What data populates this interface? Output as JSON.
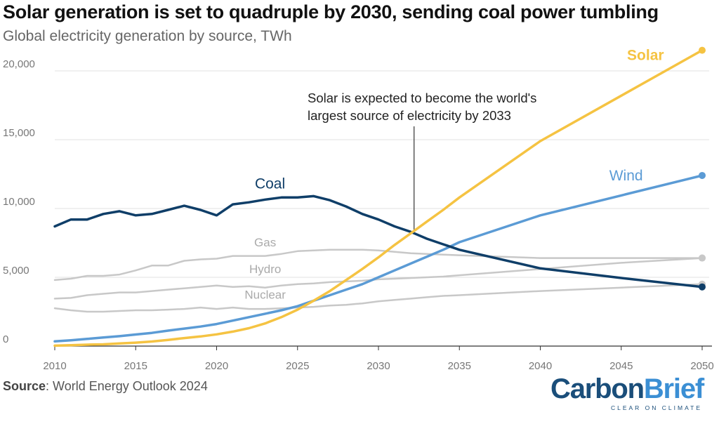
{
  "chart_data": {
    "type": "line",
    "title": "Solar generation is set to quadruple by 2030, sending coal power tumbling",
    "subtitle": "Global electricity generation by source, TWh",
    "xlim": [
      2010,
      2050
    ],
    "ylim": [
      0,
      22500
    ],
    "x_ticks": [
      "2010",
      "2015",
      "2020",
      "2025",
      "2030",
      "2035",
      "2040",
      "2045",
      "2050"
    ],
    "y_ticks": [
      {
        "value": 0,
        "label": "0"
      },
      {
        "value": 5000,
        "label": "5,000"
      },
      {
        "value": 10000,
        "label": "10,000"
      },
      {
        "value": 15000,
        "label": "15,000"
      },
      {
        "value": 20000,
        "label": "20,000"
      }
    ],
    "annotation": {
      "lines": [
        "Solar is expected to become the world's",
        "largest source of electricity by 2033"
      ],
      "x": 2032.2,
      "y": 8300
    },
    "series": [
      {
        "name": "Coal",
        "color": "#0f3e68",
        "width": 3.5,
        "label_x": 2023.3,
        "label_y": 11450,
        "label_anchor": "middle",
        "end_dot": true,
        "points": [
          [
            2010,
            8700
          ],
          [
            2011,
            9200
          ],
          [
            2012,
            9200
          ],
          [
            2013,
            9600
          ],
          [
            2014,
            9800
          ],
          [
            2015,
            9500
          ],
          [
            2016,
            9600
          ],
          [
            2017,
            9900
          ],
          [
            2018,
            10200
          ],
          [
            2019,
            9900
          ],
          [
            2020,
            9500
          ],
          [
            2021,
            10300
          ],
          [
            2022,
            10450
          ],
          [
            2023,
            10650
          ],
          [
            2024,
            10800
          ],
          [
            2025,
            10800
          ],
          [
            2026,
            10900
          ],
          [
            2027,
            10600
          ],
          [
            2028,
            10150
          ],
          [
            2029,
            9600
          ],
          [
            2030,
            9200
          ],
          [
            2031,
            8700
          ],
          [
            2032,
            8300
          ],
          [
            2033,
            7800
          ],
          [
            2034,
            7400
          ],
          [
            2035,
            7000
          ],
          [
            2040,
            5650
          ],
          [
            2045,
            4950
          ],
          [
            2050,
            4300
          ]
        ]
      },
      {
        "name": "Solar",
        "color": "#f5c342",
        "width": 3.5,
        "label_x": 2046.5,
        "label_y": 20800,
        "label_anchor": "middle",
        "end_dot": true,
        "points": [
          [
            2010,
            30
          ],
          [
            2011,
            60
          ],
          [
            2012,
            100
          ],
          [
            2013,
            130
          ],
          [
            2014,
            190
          ],
          [
            2015,
            250
          ],
          [
            2016,
            330
          ],
          [
            2017,
            450
          ],
          [
            2018,
            580
          ],
          [
            2019,
            700
          ],
          [
            2020,
            850
          ],
          [
            2021,
            1050
          ],
          [
            2022,
            1300
          ],
          [
            2023,
            1650
          ],
          [
            2024,
            2100
          ],
          [
            2025,
            2650
          ],
          [
            2026,
            3300
          ],
          [
            2027,
            4000
          ],
          [
            2028,
            4800
          ],
          [
            2029,
            5600
          ],
          [
            2030,
            6450
          ],
          [
            2031,
            7350
          ],
          [
            2032,
            8200
          ],
          [
            2033,
            9050
          ],
          [
            2034,
            9900
          ],
          [
            2035,
            10800
          ],
          [
            2040,
            14900
          ],
          [
            2045,
            18200
          ],
          [
            2050,
            21500
          ]
        ]
      },
      {
        "name": "Wind",
        "color": "#5b9bd5",
        "width": 3.5,
        "label_x": 2045.3,
        "label_y": 12050,
        "label_anchor": "middle",
        "end_dot": true,
        "points": [
          [
            2010,
            340
          ],
          [
            2011,
            420
          ],
          [
            2012,
            520
          ],
          [
            2013,
            620
          ],
          [
            2014,
            720
          ],
          [
            2015,
            840
          ],
          [
            2016,
            960
          ],
          [
            2017,
            1120
          ],
          [
            2018,
            1270
          ],
          [
            2019,
            1420
          ],
          [
            2020,
            1600
          ],
          [
            2021,
            1850
          ],
          [
            2022,
            2100
          ],
          [
            2023,
            2350
          ],
          [
            2024,
            2600
          ],
          [
            2025,
            2900
          ],
          [
            2026,
            3300
          ],
          [
            2027,
            3700
          ],
          [
            2028,
            4100
          ],
          [
            2029,
            4500
          ],
          [
            2030,
            5000
          ],
          [
            2031,
            5500
          ],
          [
            2032,
            6000
          ],
          [
            2033,
            6500
          ],
          [
            2034,
            7000
          ],
          [
            2035,
            7550
          ],
          [
            2040,
            9500
          ],
          [
            2045,
            10950
          ],
          [
            2050,
            12400
          ]
        ]
      },
      {
        "name": "Gas",
        "color": "#c8c8c8",
        "width": 2.5,
        "label_x": 2023,
        "label_y": 7250,
        "label_anchor": "middle",
        "end_dot": true,
        "points": [
          [
            2010,
            4800
          ],
          [
            2011,
            4900
          ],
          [
            2012,
            5100
          ],
          [
            2013,
            5100
          ],
          [
            2014,
            5200
          ],
          [
            2015,
            5500
          ],
          [
            2016,
            5850
          ],
          [
            2017,
            5850
          ],
          [
            2018,
            6200
          ],
          [
            2019,
            6300
          ],
          [
            2020,
            6350
          ],
          [
            2021,
            6550
          ],
          [
            2022,
            6550
          ],
          [
            2023,
            6550
          ],
          [
            2024,
            6700
          ],
          [
            2025,
            6900
          ],
          [
            2026,
            6950
          ],
          [
            2027,
            7000
          ],
          [
            2028,
            7000
          ],
          [
            2029,
            7000
          ],
          [
            2030,
            6950
          ],
          [
            2031,
            6850
          ],
          [
            2032,
            6750
          ],
          [
            2033,
            6700
          ],
          [
            2034,
            6650
          ],
          [
            2035,
            6600
          ],
          [
            2040,
            6400
          ],
          [
            2045,
            6400
          ],
          [
            2050,
            6400
          ]
        ]
      },
      {
        "name": "Hydro",
        "color": "#c8c8c8",
        "width": 2.5,
        "label_x": 2023,
        "label_y": 5300,
        "label_anchor": "middle",
        "end_dot": true,
        "points": [
          [
            2010,
            3450
          ],
          [
            2011,
            3500
          ],
          [
            2012,
            3700
          ],
          [
            2013,
            3800
          ],
          [
            2014,
            3900
          ],
          [
            2015,
            3900
          ],
          [
            2016,
            4000
          ],
          [
            2017,
            4100
          ],
          [
            2018,
            4200
          ],
          [
            2019,
            4300
          ],
          [
            2020,
            4400
          ],
          [
            2021,
            4300
          ],
          [
            2022,
            4350
          ],
          [
            2023,
            4250
          ],
          [
            2024,
            4400
          ],
          [
            2025,
            4500
          ],
          [
            2026,
            4550
          ],
          [
            2027,
            4650
          ],
          [
            2028,
            4700
          ],
          [
            2029,
            4750
          ],
          [
            2030,
            4850
          ],
          [
            2031,
            4900
          ],
          [
            2032,
            4950
          ],
          [
            2033,
            5000
          ],
          [
            2034,
            5050
          ],
          [
            2035,
            5150
          ],
          [
            2040,
            5600
          ],
          [
            2045,
            6050
          ],
          [
            2050,
            6400
          ]
        ]
      },
      {
        "name": "Nuclear",
        "color": "#c8c8c8",
        "width": 2.5,
        "label_x": 2023,
        "label_y": 3450,
        "label_anchor": "middle",
        "end_dot": true,
        "points": [
          [
            2010,
            2750
          ],
          [
            2011,
            2600
          ],
          [
            2012,
            2500
          ],
          [
            2013,
            2500
          ],
          [
            2014,
            2550
          ],
          [
            2015,
            2600
          ],
          [
            2016,
            2600
          ],
          [
            2017,
            2650
          ],
          [
            2018,
            2700
          ],
          [
            2019,
            2800
          ],
          [
            2020,
            2700
          ],
          [
            2021,
            2800
          ],
          [
            2022,
            2700
          ],
          [
            2023,
            2700
          ],
          [
            2024,
            2750
          ],
          [
            2025,
            2800
          ],
          [
            2026,
            2850
          ],
          [
            2027,
            2950
          ],
          [
            2028,
            3000
          ],
          [
            2029,
            3100
          ],
          [
            2030,
            3250
          ],
          [
            2031,
            3350
          ],
          [
            2032,
            3450
          ],
          [
            2033,
            3550
          ],
          [
            2034,
            3650
          ],
          [
            2035,
            3700
          ],
          [
            2040,
            4000
          ],
          [
            2045,
            4250
          ],
          [
            2050,
            4500
          ]
        ]
      }
    ]
  },
  "source": {
    "label": "Source",
    "text": ": World Energy Outlook 2024"
  },
  "logo": {
    "part1": "Carbon",
    "part2": "Brief",
    "tagline": "CLEAR ON CLIMATE"
  }
}
